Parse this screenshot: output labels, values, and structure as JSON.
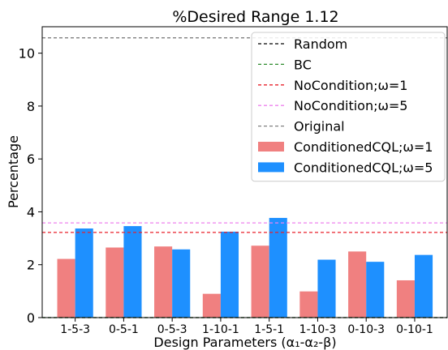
{
  "chart_data": {
    "type": "bar",
    "title": "%Desired Range 1.12",
    "xlabel": "Design Parameters (α₁-α₂-β)",
    "ylabel": "Percentage",
    "ylim": [
      0,
      11
    ],
    "yticks": [
      0,
      2,
      4,
      6,
      8,
      10
    ],
    "categories": [
      "1-5-3",
      "0-5-1",
      "0-5-3",
      "1-10-1",
      "1-5-1",
      "1-10-3",
      "0-10-3",
      "0-10-1"
    ],
    "series": [
      {
        "name": "ConditionedCQL;ω=1",
        "color": "#f08080",
        "values": [
          2.22,
          2.65,
          2.69,
          0.9,
          2.72,
          0.99,
          2.5,
          1.41
        ]
      },
      {
        "name": "ConditionedCQL;ω=5",
        "color": "#1e90ff",
        "values": [
          3.37,
          3.46,
          2.58,
          3.25,
          3.77,
          2.19,
          2.11,
          2.37
        ]
      }
    ],
    "reference_lines": [
      {
        "name": "Random",
        "value": 0.0,
        "color": "#000000"
      },
      {
        "name": "BC",
        "value": 0.0,
        "color": "#2e8b2e"
      },
      {
        "name": "NoCondition;ω=1",
        "value": 3.22,
        "color": "#e8212b"
      },
      {
        "name": "NoCondition;ω=5",
        "value": 3.58,
        "color": "#ee82ee"
      },
      {
        "name": "Original",
        "value": 10.58,
        "color": "#808080"
      }
    ],
    "grid": false,
    "legend_position": "top-right"
  }
}
